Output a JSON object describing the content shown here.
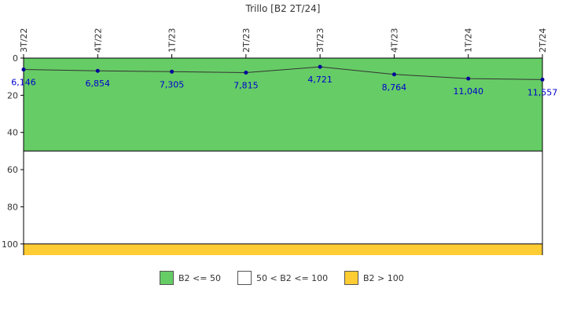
{
  "chart_data": {
    "type": "line",
    "title": "Trillo [B2 2T/24]",
    "categories": [
      "3T/22",
      "4T/22",
      "1T/23",
      "2T/23",
      "3T/23",
      "4T/23",
      "1T/24",
      "2T/24"
    ],
    "values": [
      6.146,
      6.854,
      7.305,
      7.815,
      4.721,
      8.764,
      11.04,
      11.557
    ],
    "point_labels": [
      "6,146",
      "6,854",
      "7,305",
      "7,815",
      "4,721",
      "8,764",
      "11,040",
      "11,557"
    ],
    "y_ticks": [
      "0",
      "20",
      "40",
      "60",
      "80",
      "100"
    ],
    "ylim": [
      0,
      106
    ],
    "y_inverted": true,
    "bands": [
      {
        "from": 0,
        "to": 50,
        "color": "#66cc66",
        "label": "B2 <= 50"
      },
      {
        "from": 50,
        "to": 100,
        "color": "#ffffff",
        "label": "50 < B2 <= 100"
      },
      {
        "from": 100,
        "to": 106,
        "color": "#ffcc33",
        "label": "B2 > 100"
      }
    ],
    "line_color": "#333333",
    "point_color": "#000099",
    "label_color": "#0000cc",
    "legend_position": "bottom"
  }
}
